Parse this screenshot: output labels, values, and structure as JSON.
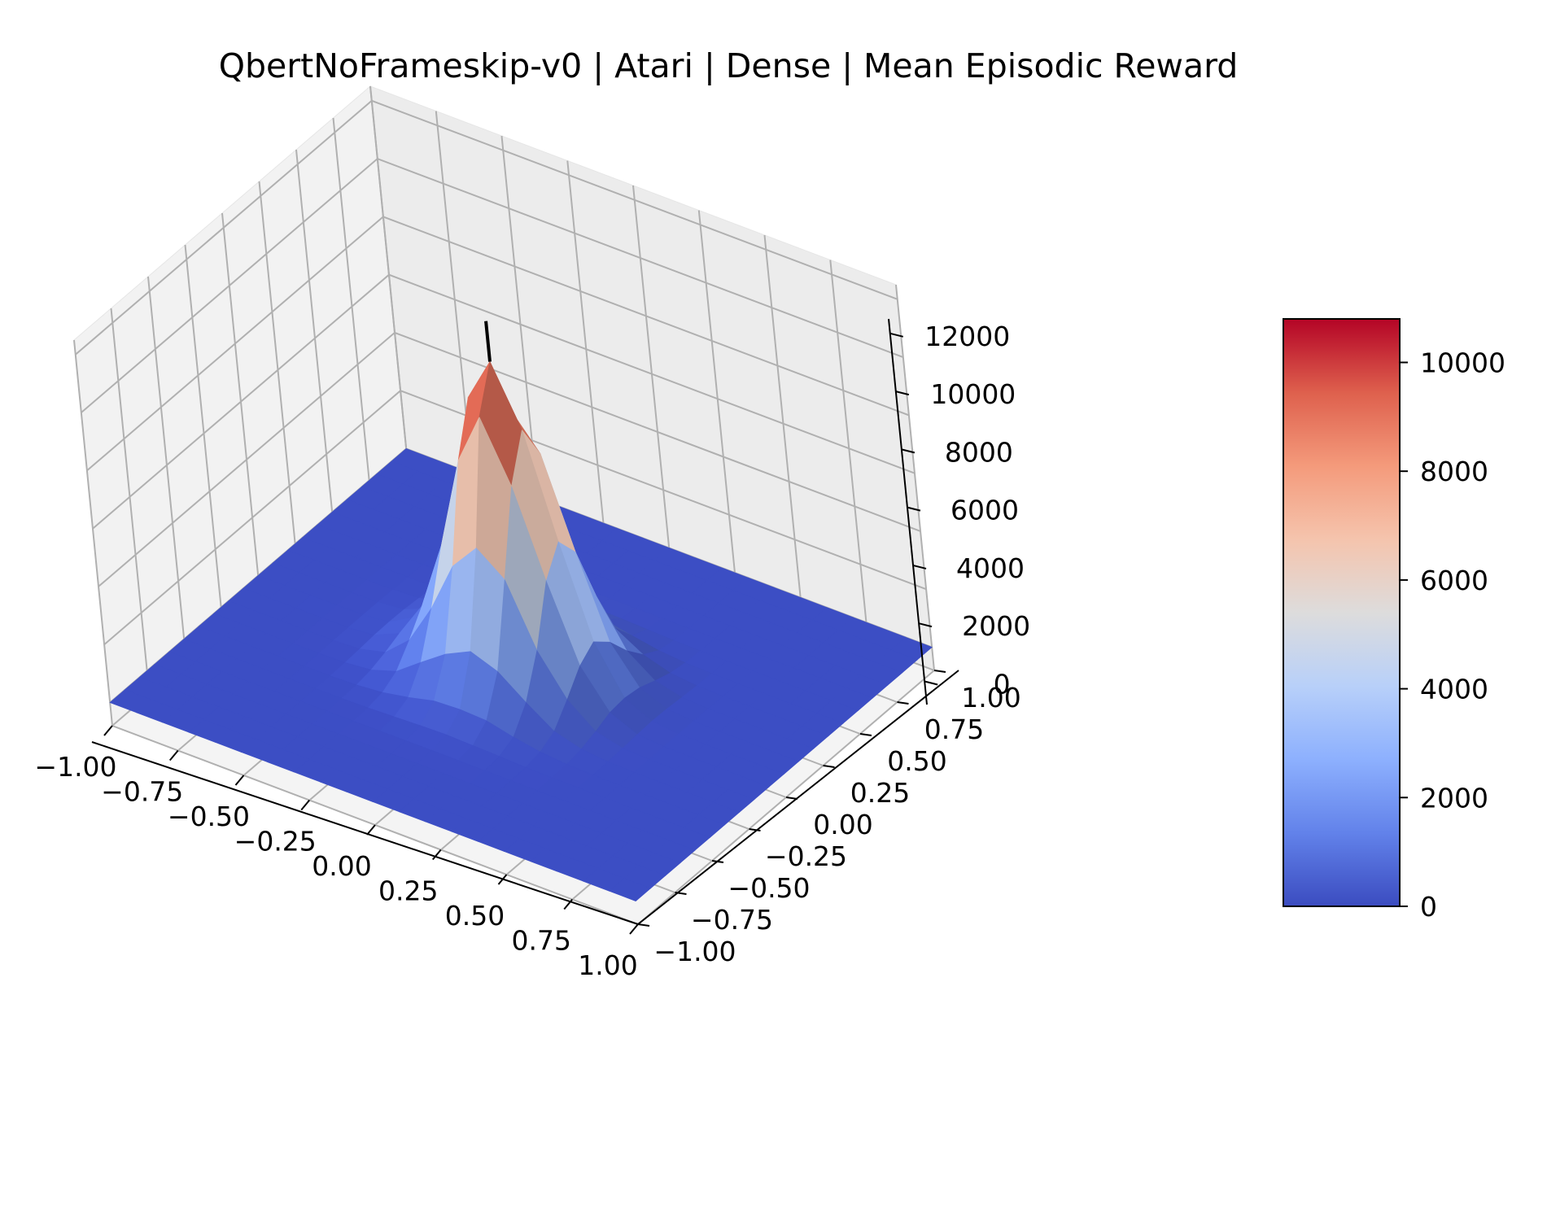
{
  "chart_data": {
    "type": "surface3d",
    "title": "QbertNoFrameskip-v0 | Atari | Dense | Mean Episodic Reward",
    "xlabel": "",
    "ylabel": "",
    "zlabel": "",
    "x_ticks": [
      "−1.00",
      "−0.75",
      "−0.50",
      "−0.25",
      "0.00",
      "0.25",
      "0.50",
      "0.75",
      "1.00"
    ],
    "y_ticks": [
      "−1.00",
      "−0.75",
      "−0.50",
      "−0.25",
      "0.00",
      "0.25",
      "0.50",
      "0.75",
      "1.00"
    ],
    "z_ticks": [
      "0",
      "2000",
      "4000",
      "6000",
      "8000",
      "10000",
      "12000"
    ],
    "xlim": [
      -1,
      1
    ],
    "ylim": [
      -1,
      1
    ],
    "zlim": [
      -800,
      12500
    ],
    "surface": {
      "grid_points": 21,
      "peak_value": 10800,
      "peak_location": [
        0,
        0
      ],
      "shape": "sharp peak at center, near zero beyond radius ~0.4"
    },
    "marker": {
      "type": "vertical-line",
      "x": 0,
      "y": 0,
      "z_from": 10800,
      "z_to": 12200,
      "color": "#000000"
    },
    "colorbar": {
      "colormap": "coolwarm",
      "min": 0,
      "max": 10800,
      "ticks": [
        "0",
        "2000",
        "4000",
        "6000",
        "8000",
        "10000"
      ]
    },
    "grid": true
  }
}
